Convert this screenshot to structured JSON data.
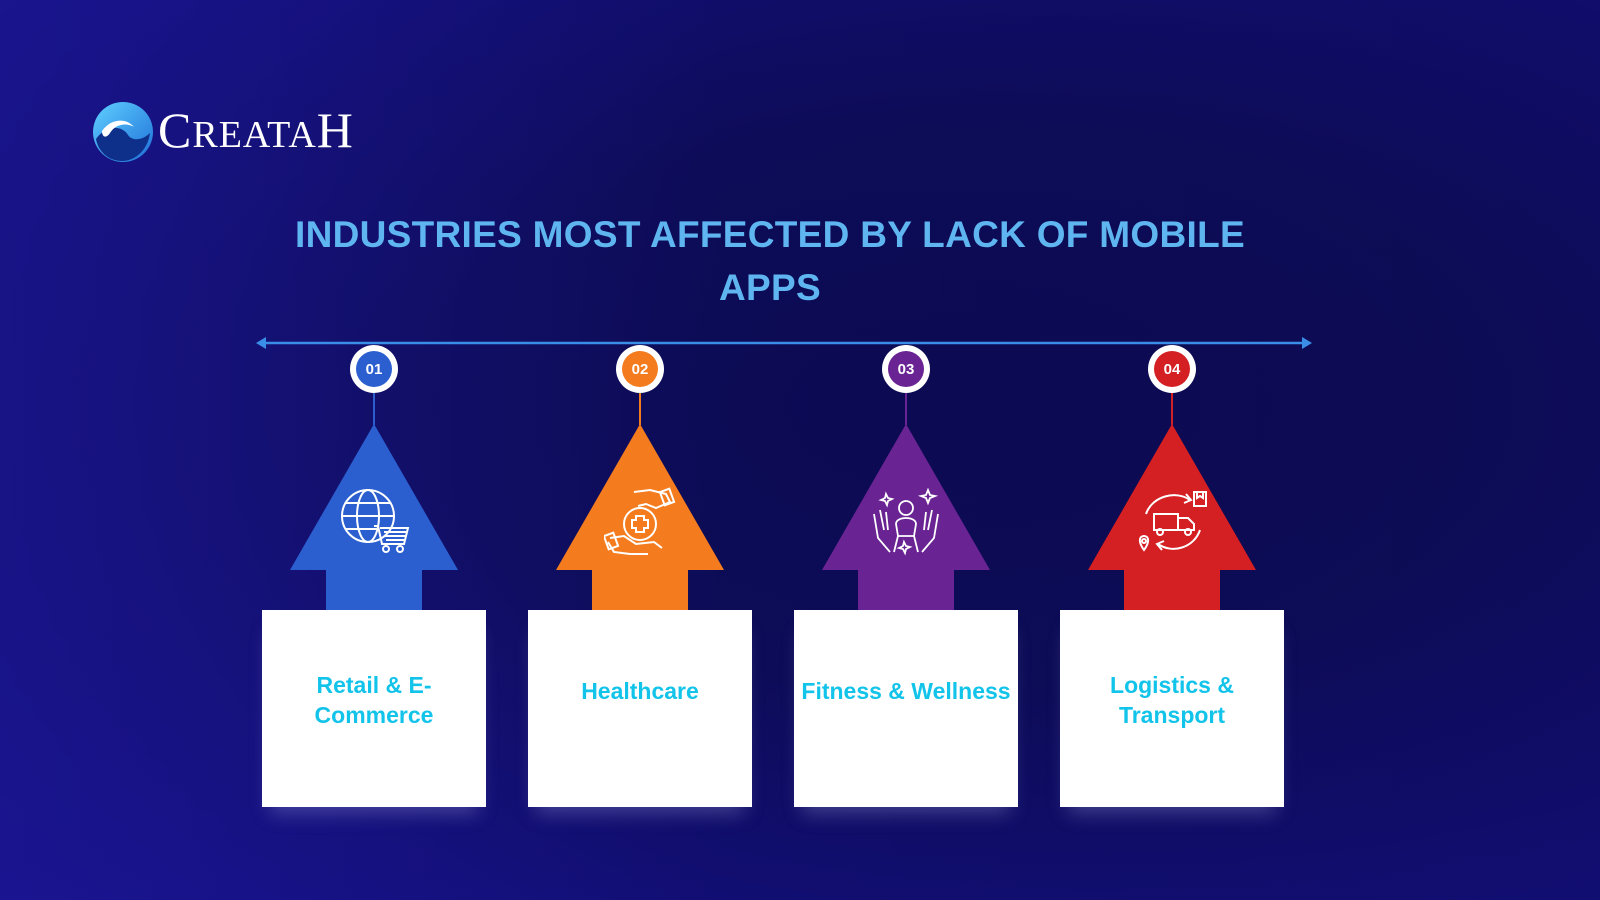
{
  "brand": {
    "name_first": "C",
    "name_rest": "REATA",
    "name_last": "H"
  },
  "title": "INDUSTRIES MOST AFFECTED BY LACK OF MOBILE APPS",
  "colors": {
    "title": "#5fb5f0",
    "timeline": "#3a8ee8",
    "label": "#12c3ea"
  },
  "steps": [
    {
      "number": "01",
      "label": "Retail & E-Commerce",
      "color": "#2b5fd0",
      "icon": "globe-cart-icon"
    },
    {
      "number": "02",
      "label": "Healthcare",
      "color": "#f47c1f",
      "icon": "hands-medical-cross-icon"
    },
    {
      "number": "03",
      "label": "Fitness & Wellness",
      "color": "#6a2393",
      "icon": "wellness-person-icon"
    },
    {
      "number": "04",
      "label": "Logistics & Transport",
      "color": "#d41f23",
      "icon": "delivery-truck-icon"
    }
  ]
}
